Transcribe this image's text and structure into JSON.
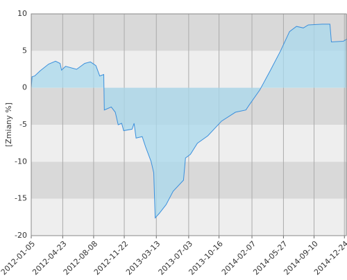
{
  "chart_data": {
    "type": "area",
    "y_label": "[Zmiany %]",
    "x": [
      "2012-01-05",
      "2012-01-08",
      "2012-01-17",
      "2012-02-05",
      "2012-03-05",
      "2012-03-29",
      "2012-04-14",
      "2012-04-19",
      "2012-05-03",
      "2012-06-10",
      "2012-07-08",
      "2012-07-28",
      "2012-08-16",
      "2012-08-29",
      "2012-09-12",
      "2012-09-14",
      "2012-10-08",
      "2012-10-22",
      "2012-11-01",
      "2012-11-13",
      "2012-11-20",
      "2012-12-19",
      "2012-12-26",
      "2013-01-02",
      "2013-01-23",
      "2013-02-04",
      "2013-02-23",
      "2013-03-04",
      "2013-03-09",
      "2013-03-23",
      "2013-04-16",
      "2013-05-10",
      "2013-06-15",
      "2013-06-22",
      "2013-07-09",
      "2013-08-02",
      "2013-09-07",
      "2013-10-25",
      "2013-12-12",
      "2014-01-17",
      "2014-01-29",
      "2014-03-06",
      "2014-04-11",
      "2014-05-17",
      "2014-06-17",
      "2014-07-11",
      "2014-08-04",
      "2014-08-21",
      "2014-10-08",
      "2014-11-04",
      "2014-11-09",
      "2014-12-20",
      "2015-01-02"
    ],
    "series": [
      {
        "color": "#3a8fdc",
        "fill": "#a8d8ec",
        "values": [
          0,
          1.5,
          1.6,
          2.3,
          3.2,
          3.6,
          3.3,
          2.4,
          2.9,
          2.5,
          3.3,
          3.5,
          3.0,
          1.6,
          1.8,
          -3.0,
          -2.6,
          -3.3,
          -5.0,
          -4.8,
          -5.8,
          -5.6,
          -4.8,
          -6.8,
          -6.6,
          -8.0,
          -10.0,
          -11.5,
          -17.6,
          -17.0,
          -15.8,
          -14.0,
          -12.5,
          -9.5,
          -9.0,
          -7.5,
          -6.5,
          -4.5,
          -3.3,
          -3.0,
          -2.3,
          -0.3,
          2.3,
          5.0,
          7.6,
          8.3,
          8.1,
          8.5,
          8.6,
          8.6,
          6.2,
          6.3,
          6.6
        ]
      }
    ],
    "xlim": [
      "2012-01-05",
      "2015-01-02"
    ],
    "xticks": [
      "2012-01-05",
      "2012-04-23",
      "2012-08-08",
      "2012-11-22",
      "2013-03-13",
      "2013-07-03",
      "2013-10-16",
      "2014-02-07",
      "2014-05-27",
      "2014-09-10",
      "2014-12-24"
    ],
    "ylim": [
      -20,
      10
    ],
    "yticks": [
      -20,
      -15,
      -10,
      -5,
      0,
      5,
      10
    ],
    "band_colors": [
      "#eeeeee",
      "#d9d9d9"
    ],
    "grid": true
  }
}
